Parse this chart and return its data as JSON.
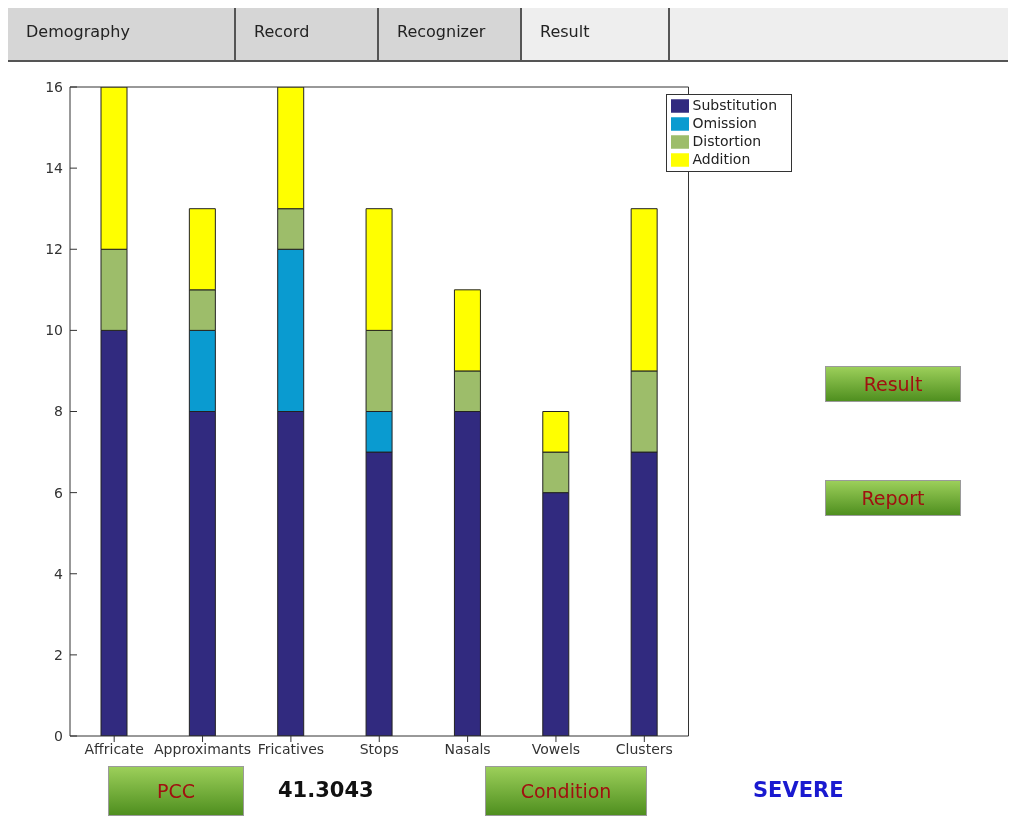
{
  "chart_data": {
    "type": "bar",
    "stacked": true,
    "categories": [
      "Affricate",
      "Approximants",
      "Fricatives",
      "Stops",
      "Nasals",
      "Vowels",
      "Clusters"
    ],
    "series": [
      {
        "name": "Substitution",
        "color": "#312a7f",
        "values": [
          10,
          8,
          8,
          7,
          8,
          6,
          7
        ]
      },
      {
        "name": "Omission",
        "color": "#0a9bd0",
        "values": [
          0,
          2,
          4,
          1,
          0,
          0,
          0
        ]
      },
      {
        "name": "Distortion",
        "color": "#9dbd6a",
        "values": [
          2,
          1,
          1,
          2,
          1,
          1,
          2
        ]
      },
      {
        "name": "Addition",
        "color": "#ffff00",
        "values": [
          4,
          2,
          3,
          3,
          2,
          1,
          4
        ]
      }
    ],
    "ylim": [
      0,
      16
    ],
    "yticks": [
      0,
      2,
      4,
      6,
      8,
      10,
      12,
      14,
      16
    ],
    "legend": "top right",
    "annotations": [
      "Demography",
      "Record",
      "Recognizer",
      "Result",
      "Result",
      "Report",
      "PCC",
      "41.3043",
      "Condition",
      "SEVERE"
    ]
  }
}
